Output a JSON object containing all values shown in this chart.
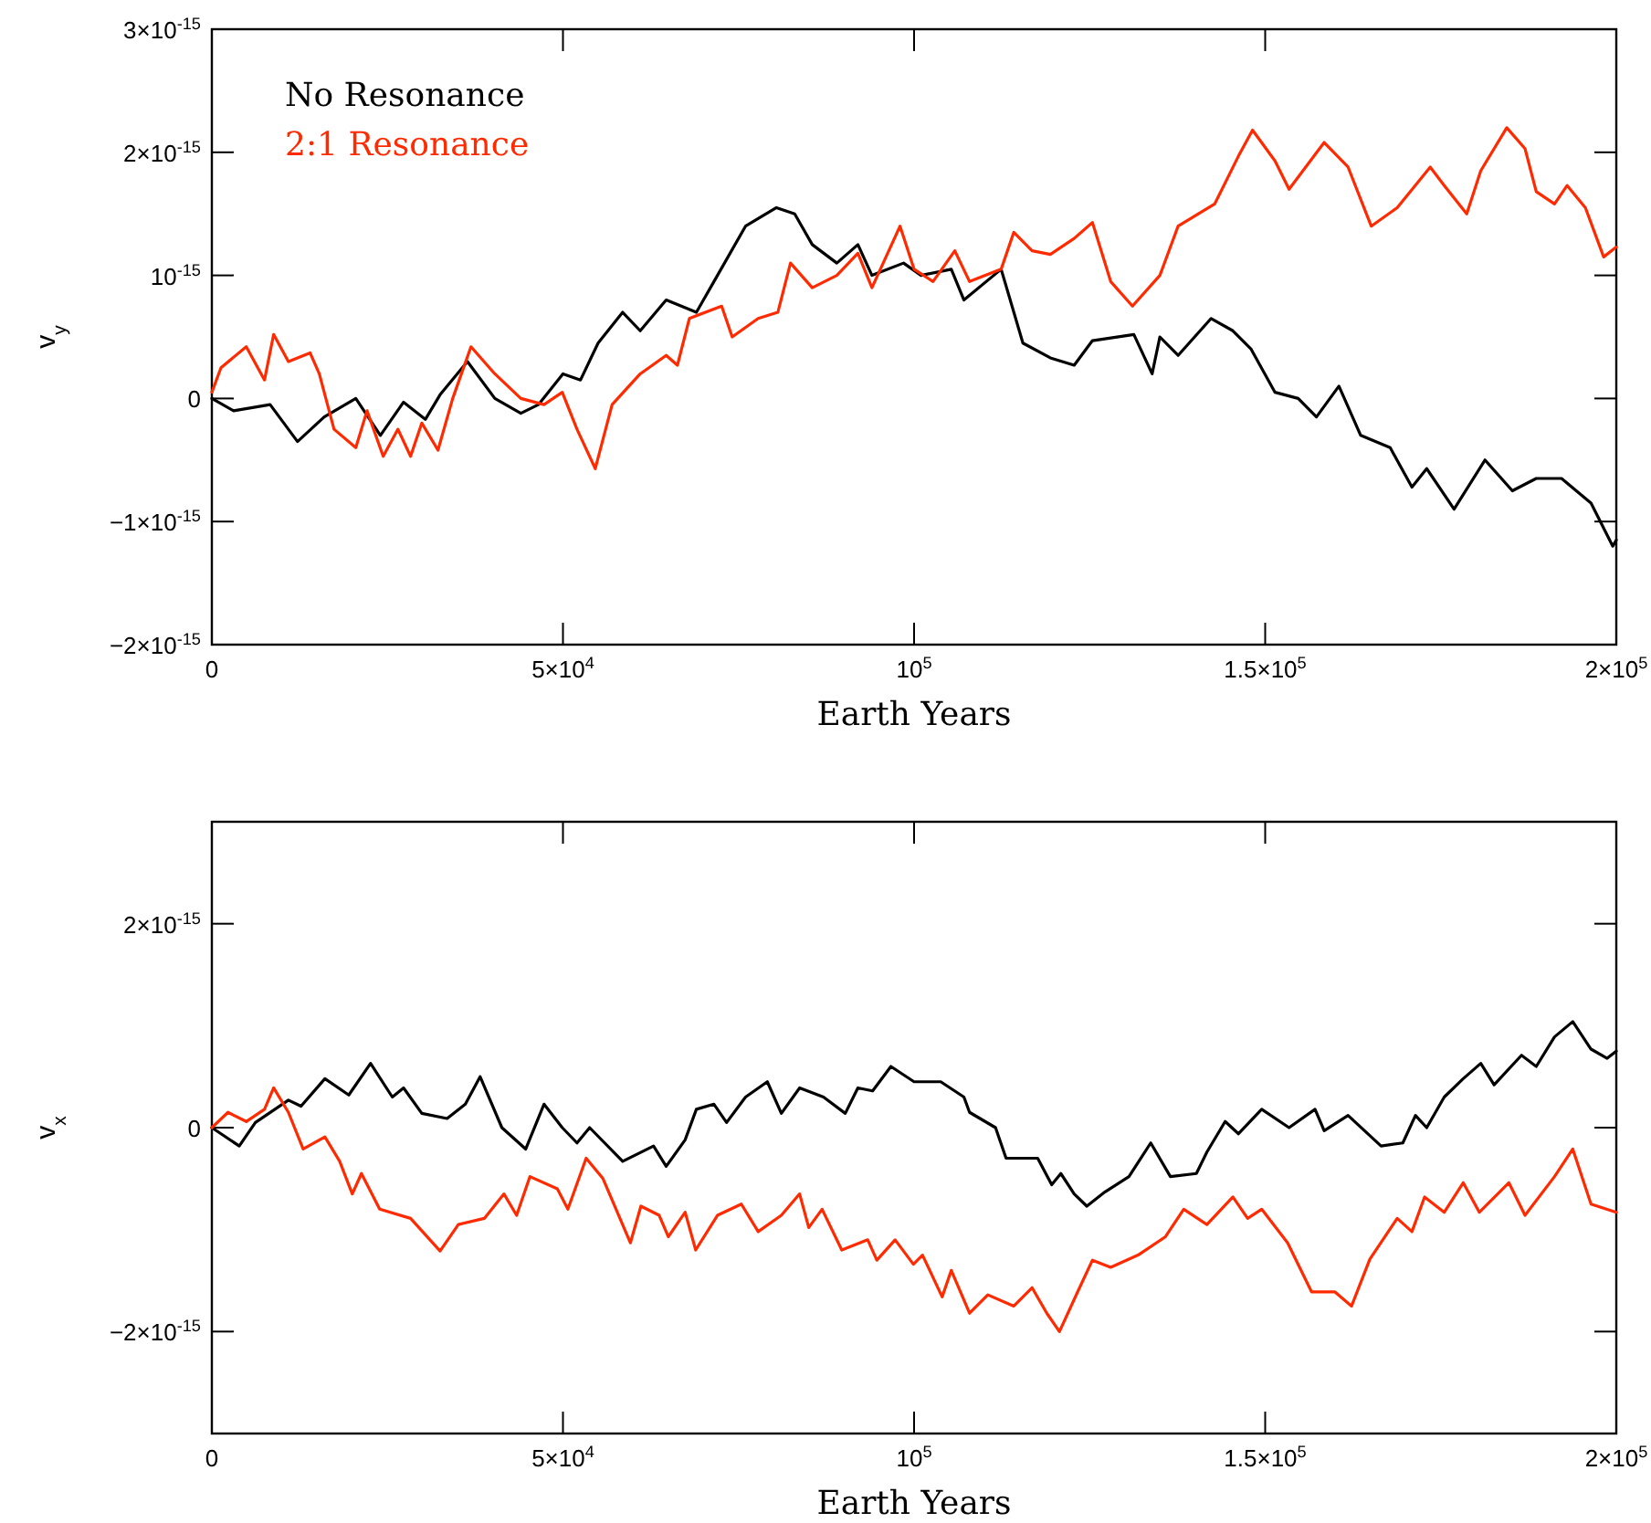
{
  "chart_data": [
    {
      "type": "line",
      "xlabel": "Earth Years",
      "ylabel": "v$_{y}$",
      "legend": "top left",
      "line_style": "solid",
      "xlim": [
        0,
        200000
      ],
      "ylim": [
        -2e-15,
        3e-15
      ],
      "xticks": [
        0,
        {
          "value": 50000,
          "label": "5×10$^{4}$"
        },
        {
          "value": 100000,
          "label": "10$^{5}$"
        },
        {
          "value": 150000,
          "label": "1.5×10$^{5}$"
        },
        {
          "value": 200000,
          "label": "2×10$^{5}$"
        }
      ],
      "yticks": [
        {
          "value": -2e-15,
          "label": "−2×10$^{-15}$"
        },
        {
          "value": -1e-15,
          "label": "−1×10$^{-15}$"
        },
        0,
        {
          "value": 1e-15,
          "label": "10$^{-15}$"
        },
        {
          "value": 2e-15,
          "label": "2×10$^{-15}$"
        },
        {
          "value": 3e-15,
          "label": "3×10$^{-15}$"
        }
      ],
      "series": [
        {
          "name": "No Resonance",
          "color": "#000000",
          "x": [
            0,
            3100,
            8300,
            12200,
            16000,
            20500,
            24000,
            27300,
            30400,
            32500,
            36400,
            40300,
            44000,
            46500,
            50000,
            52500,
            55000,
            58500,
            61000,
            64700,
            69000,
            71500,
            76000,
            80400,
            83000,
            85500,
            89000,
            92000,
            94000,
            98500,
            101000,
            105300,
            107100,
            112400,
            115500,
            119400,
            122800,
            125400,
            131300,
            133900,
            135000,
            137600,
            142300,
            145400,
            148000,
            151400,
            154700,
            157300,
            160500,
            163600,
            167800,
            170900,
            173000,
            176900,
            181300,
            185200,
            188600,
            192200,
            196400,
            199500,
            200000
          ],
          "values": [
            0,
            -1e-16,
            -5e-17,
            -3.5e-16,
            -1.5e-16,
            0,
            -3e-16,
            -3e-17,
            -1.7e-16,
            3e-17,
            3e-16,
            0,
            -1.2e-16,
            -5e-17,
            2e-16,
            1.5e-16,
            4.5e-16,
            7e-16,
            5.5e-16,
            8e-16,
            7e-16,
            9.5e-16,
            1.4e-15,
            1.55e-15,
            1.5e-15,
            1.25e-15,
            1.1e-15,
            1.25e-15,
            1e-15,
            1.1e-15,
            1e-15,
            1.05e-15,
            8e-16,
            1.05e-15,
            4.5e-16,
            3.3e-16,
            2.7e-16,
            4.7e-16,
            5.2e-16,
            2e-16,
            5e-16,
            3.5e-16,
            6.5e-16,
            5.5e-16,
            4e-16,
            5e-17,
            0,
            -1.5e-16,
            1e-16,
            -3e-16,
            -4e-16,
            -7.2e-16,
            -5.7e-16,
            -9e-16,
            -5e-16,
            -7.5e-16,
            -6.5e-16,
            -6.5e-16,
            -8.5e-16,
            -1.2e-15,
            -1.15e-15
          ]
        },
        {
          "name": "2:1 Resonance",
          "color": "#ff2a00",
          "x": [
            0,
            1300,
            4900,
            7500,
            8800,
            10900,
            14000,
            15300,
            17400,
            20500,
            22100,
            24400,
            26500,
            28300,
            29900,
            32200,
            34300,
            36900,
            40300,
            44000,
            47300,
            49900,
            52000,
            54600,
            57000,
            61000,
            64700,
            66300,
            68000,
            72600,
            74100,
            77800,
            80600,
            82400,
            85500,
            89000,
            92000,
            94000,
            98000,
            100000,
            102700,
            105800,
            107900,
            112400,
            114200,
            116800,
            119400,
            122800,
            125400,
            128000,
            131100,
            135000,
            137600,
            142800,
            146200,
            148200,
            151400,
            153400,
            158400,
            161800,
            165100,
            168800,
            173500,
            175500,
            178700,
            180700,
            184400,
            187000,
            188600,
            191200,
            193000,
            195600,
            198200,
            200000
          ],
          "values": [
            5e-17,
            2.5e-16,
            4.2e-16,
            1.5e-16,
            5.2e-16,
            3e-16,
            3.7e-16,
            2e-16,
            -2.5e-16,
            -4e-16,
            -1e-16,
            -4.7e-16,
            -2.5e-16,
            -4.7e-16,
            -2e-16,
            -4.2e-16,
            0,
            4.2e-16,
            2e-16,
            0,
            -5e-17,
            5e-17,
            -2.5e-16,
            -5.7e-16,
            -5e-17,
            2e-16,
            3.5e-16,
            2.7e-16,
            6.5e-16,
            7.5e-16,
            5e-16,
            6.5e-16,
            7e-16,
            1.1e-15,
            9e-16,
            1e-15,
            1.18e-15,
            9e-16,
            1.4e-15,
            1.05e-15,
            9.5e-16,
            1.2e-15,
            9.5e-16,
            1.05e-15,
            1.35e-15,
            1.2e-15,
            1.17e-15,
            1.3e-15,
            1.43e-15,
            9.5e-16,
            7.5e-16,
            1e-15,
            1.4e-15,
            1.58e-15,
            1.97e-15,
            2.18e-15,
            1.93e-15,
            1.7e-15,
            2.08e-15,
            1.88e-15,
            1.4e-15,
            1.55e-15,
            1.88e-15,
            1.73e-15,
            1.5e-15,
            1.85e-15,
            2.2e-15,
            2.03e-15,
            1.68e-15,
            1.58e-15,
            1.73e-15,
            1.55e-15,
            1.15e-15,
            1.23e-15
          ]
        }
      ]
    },
    {
      "type": "line",
      "xlabel": "Earth Years",
      "ylabel": "v$_{x}$",
      "line_style": "solid",
      "xlim": [
        0,
        200000
      ],
      "ylim": [
        -3e-15,
        3e-15
      ],
      "xticks": [
        0,
        {
          "value": 50000,
          "label": "5×10$^{4}$"
        },
        {
          "value": 100000,
          "label": "10$^{5}$"
        },
        {
          "value": 150000,
          "label": "1.5×10$^{5}$"
        },
        {
          "value": 200000,
          "label": "2×10$^{5}$"
        }
      ],
      "yticks": [
        {
          "value": -2e-15,
          "label": "−2×10$^{-15}$"
        },
        0,
        {
          "value": 2e-15,
          "label": "2×10$^{-15}$"
        }
      ],
      "series": [
        {
          "color": "#000000",
          "x": [
            0,
            3900,
            6200,
            10900,
            12700,
            16100,
            19500,
            22600,
            25700,
            27300,
            29900,
            33500,
            36100,
            38200,
            41300,
            44700,
            47300,
            49900,
            52000,
            53800,
            58500,
            62900,
            64700,
            67400,
            69000,
            71500,
            73300,
            76000,
            79100,
            81100,
            83700,
            87100,
            90200,
            92000,
            94100,
            96700,
            100000,
            103800,
            107100,
            107900,
            111600,
            113100,
            117600,
            119600,
            120900,
            122800,
            124600,
            127200,
            130600,
            133700,
            136500,
            140200,
            141700,
            144300,
            146200,
            149500,
            153400,
            157100,
            158400,
            161800,
            166500,
            169600,
            171400,
            173000,
            175500,
            178200,
            180700,
            182600,
            186500,
            188600,
            191200,
            193800,
            196400,
            198700,
            200000
          ],
          "values": [
            0,
            -1.8e-16,
            5e-17,
            2.7e-16,
            2.1e-16,
            4.8e-16,
            3.2e-16,
            6.3e-16,
            3e-16,
            3.9e-16,
            1.4e-16,
            9e-17,
            2.3e-16,
            5e-16,
            0,
            -2.1e-16,
            2.3e-16,
            0,
            -1.5e-16,
            0,
            -3.3e-16,
            -1.8e-16,
            -3.8e-16,
            -1.2e-16,
            1.8e-16,
            2.3e-16,
            5e-17,
            3e-16,
            4.5e-16,
            1.4e-16,
            3.9e-16,
            3e-16,
            1.4e-16,
            3.9e-16,
            3.6e-16,
            6e-16,
            4.5e-16,
            4.5e-16,
            3e-16,
            1.5e-16,
            0,
            -3e-16,
            -3e-16,
            -5.6e-16,
            -4.5e-16,
            -6.5e-16,
            -7.7e-16,
            -6.3e-16,
            -4.8e-16,
            -1.5e-16,
            -4.8e-16,
            -4.5e-16,
            -2.4e-16,
            6e-17,
            -6e-17,
            1.8e-16,
            0,
            1.8e-16,
            -3e-17,
            1.2e-16,
            -1.8e-16,
            -1.5e-16,
            1.2e-16,
            0,
            3e-16,
            4.8e-16,
            6.3e-16,
            4.2e-16,
            7.1e-16,
            6e-16,
            8.9e-16,
            1.04e-15,
            7.7e-16,
            6.8e-16,
            7.5e-16
          ]
        },
        {
          "color": "#ff2a00",
          "x": [
            0,
            2300,
            4900,
            7500,
            8800,
            10900,
            13000,
            16100,
            18200,
            20000,
            21300,
            23900,
            28300,
            32500,
            35100,
            38800,
            41600,
            43400,
            45300,
            49200,
            50700,
            53300,
            55700,
            59600,
            61100,
            63700,
            65000,
            67400,
            68900,
            72000,
            75400,
            77800,
            81100,
            83700,
            85000,
            86900,
            89700,
            93400,
            94700,
            97300,
            99900,
            101200,
            104000,
            105300,
            107900,
            110500,
            114200,
            116800,
            118900,
            120700,
            123300,
            125400,
            128000,
            131900,
            135800,
            138400,
            141700,
            145400,
            147500,
            149500,
            153200,
            156600,
            159900,
            162300,
            164900,
            168800,
            170900,
            172700,
            175500,
            178200,
            180500,
            184700,
            187000,
            191200,
            193800,
            196400,
            200000
          ],
          "values": [
            0,
            1.5e-16,
            6e-17,
            1.8e-16,
            3.9e-16,
            1.5e-16,
            -2.1e-16,
            -9e-17,
            -3.3e-16,
            -6.5e-16,
            -4.5e-16,
            -8e-16,
            -8.9e-16,
            -1.21e-15,
            -9.5e-16,
            -8.9e-16,
            -6.5e-16,
            -8.6e-16,
            -4.8e-16,
            -6e-16,
            -8e-16,
            -3e-16,
            -5e-16,
            -1.13e-15,
            -7.7e-16,
            -8.6e-16,
            -1.07e-15,
            -8.3e-16,
            -1.2e-15,
            -8.6e-16,
            -7.5e-16,
            -1.02e-15,
            -8.6e-16,
            -6.5e-16,
            -9.8e-16,
            -8e-16,
            -1.2e-15,
            -1.1e-15,
            -1.3e-15,
            -1.1e-15,
            -1.34e-15,
            -1.25e-15,
            -1.66e-15,
            -1.4e-15,
            -1.82e-15,
            -1.64e-15,
            -1.75e-15,
            -1.57e-15,
            -1.82e-15,
            -2e-15,
            -1.61e-15,
            -1.3e-15,
            -1.37e-15,
            -1.25e-15,
            -1.07e-15,
            -8e-16,
            -9.5e-16,
            -6.8e-16,
            -8.9e-16,
            -8e-16,
            -1.13e-15,
            -1.61e-15,
            -1.61e-15,
            -1.75e-15,
            -1.29e-15,
            -8.9e-16,
            -1.02e-15,
            -6.8e-16,
            -8.3e-16,
            -5.4e-16,
            -8.3e-16,
            -5.4e-16,
            -8.6e-16,
            -4.8e-16,
            -2.1e-16,
            -7.5e-16,
            -8.3e-16
          ]
        }
      ]
    }
  ]
}
